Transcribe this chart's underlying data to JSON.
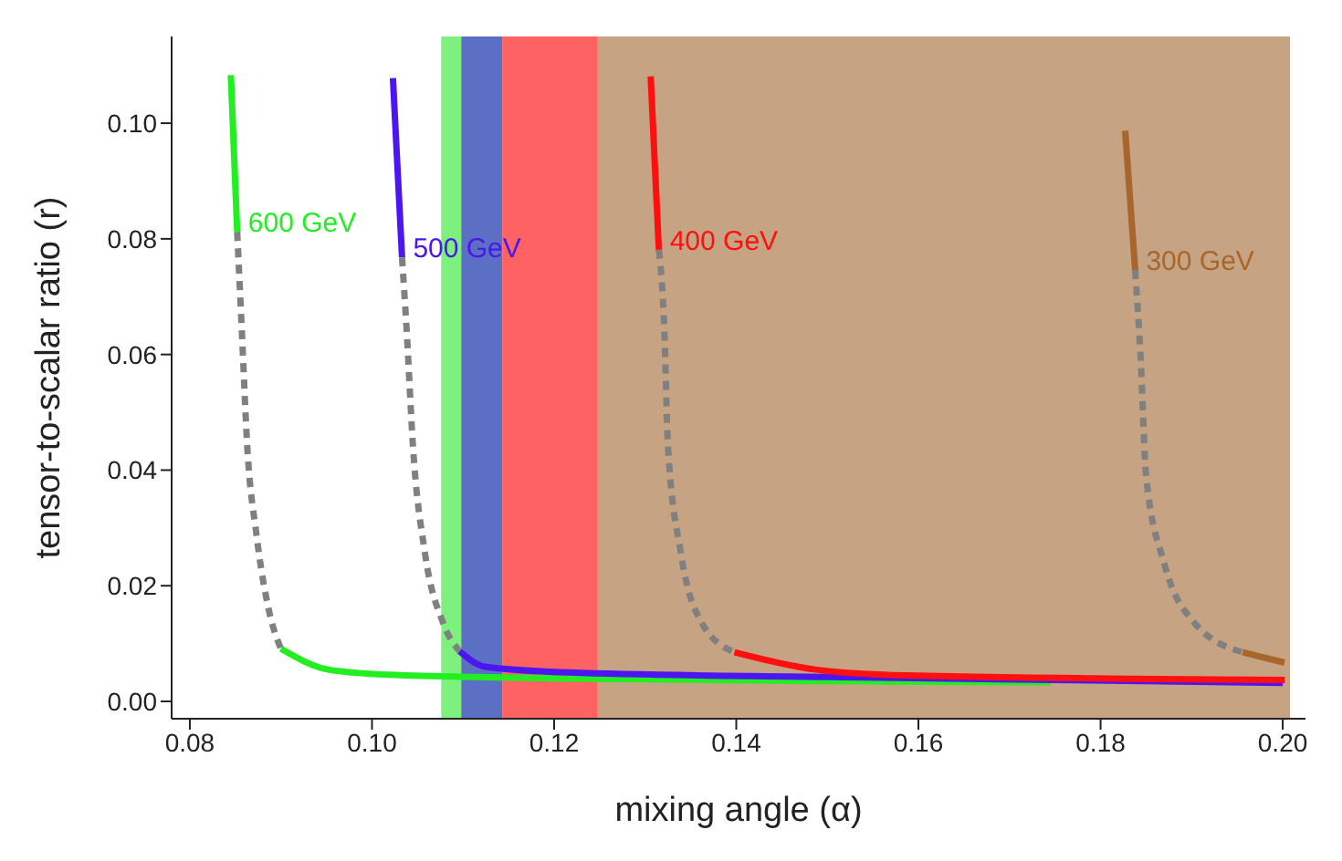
{
  "chart_data": {
    "type": "line",
    "xlabel": "mixing angle (α)",
    "ylabel": "tensor-to-scalar ratio (r)",
    "xlim": [
      0.078,
      0.2025
    ],
    "ylim": [
      -0.003,
      0.115
    ],
    "xticks": [
      0.08,
      {
        "value": 0.1,
        "label": "0.10"
      },
      0.12,
      0.14,
      0.16,
      0.18,
      {
        "value": 0.2,
        "label": "0.20"
      }
    ],
    "yticks": [
      {
        "value": 0,
        "label": "0.00"
      },
      {
        "value": 0.02,
        "label": "0.02"
      },
      {
        "value": 0.04,
        "label": "0.04"
      },
      {
        "value": 0.06,
        "label": "0.06"
      },
      {
        "value": 0.08,
        "label": "0.08"
      },
      {
        "value": 0.1,
        "label": "0.10"
      }
    ],
    "bands": [
      {
        "axis": "x",
        "from": 0.1076,
        "to": 0.1098,
        "color": "#7ef07e"
      },
      {
        "axis": "x",
        "from": 0.1098,
        "to": 0.1143,
        "color": "#5b70c4"
      },
      {
        "axis": "x",
        "from": 0.1143,
        "to": 0.1248,
        "color": "#ff6262"
      },
      {
        "axis": "x",
        "from": 0.1248,
        "to": 0.2008,
        "color": "#c6a382"
      }
    ],
    "series": [
      {
        "name": "600 GeV",
        "color": "#22ee22",
        "x": [
          0.0845,
          0.0852,
          0.0876,
          0.09,
          0.0952,
          0.1018,
          0.12,
          0.15,
          0.1745
        ],
        "values": [
          0.1083,
          0.0812,
          null,
          0.0091,
          0.0055,
          0.0046,
          0.004,
          0.0035,
          0.0033
        ]
      },
      {
        "name": "500 GeV",
        "color": "#4b16f0",
        "x": [
          0.1023,
          0.1033,
          0.106,
          0.1096,
          0.1124,
          0.1216,
          0.15,
          0.2
        ],
        "values": [
          0.1078,
          0.0768,
          null,
          0.0087,
          0.006,
          0.005,
          0.0042,
          0.0032
        ]
      },
      {
        "name": "400 GeV",
        "color": "#ff1010",
        "x": [
          0.1306,
          0.1315,
          0.135,
          0.1398,
          0.1487,
          0.1586,
          0.2002
        ],
        "values": [
          0.1081,
          0.0781,
          null,
          0.0085,
          0.0055,
          0.0045,
          0.0037
        ]
      },
      {
        "name": "300 GeV",
        "color": "#a8662c",
        "x": [
          0.1827,
          0.1838,
          0.19,
          0.1956,
          0.2002
        ],
        "values": [
          0.0987,
          0.0746,
          null,
          0.0085,
          0.0067
        ]
      },
      {
        "color": "#808080",
        "line_style": "dashed",
        "x": [
          0.0852,
          0.0857,
          0.0863,
          0.0873,
          0.0887,
          0.09
        ],
        "values": [
          0.0812,
          0.0644,
          0.0442,
          0.029,
          0.0156,
          0.0091
        ]
      },
      {
        "color": "#808080",
        "line_style": "dashed",
        "x": [
          0.1033,
          0.1038,
          0.1045,
          0.1058,
          0.1078,
          0.1096
        ],
        "values": [
          0.0768,
          0.0644,
          0.0441,
          0.0258,
          0.0136,
          0.0087
        ]
      },
      {
        "color": "#808080",
        "line_style": "dashed",
        "x": [
          0.1315,
          0.1321,
          0.1325,
          0.1339,
          0.1362,
          0.1398
        ],
        "values": [
          0.0781,
          0.0644,
          0.0441,
          0.0258,
          0.0136,
          0.0085
        ]
      },
      {
        "color": "#808080",
        "line_style": "dashed",
        "x": [
          0.1838,
          0.1844,
          0.185,
          0.187,
          0.1903,
          0.1956
        ],
        "values": [
          0.0746,
          0.0594,
          0.039,
          0.0238,
          0.0136,
          0.0085
        ]
      }
    ]
  }
}
